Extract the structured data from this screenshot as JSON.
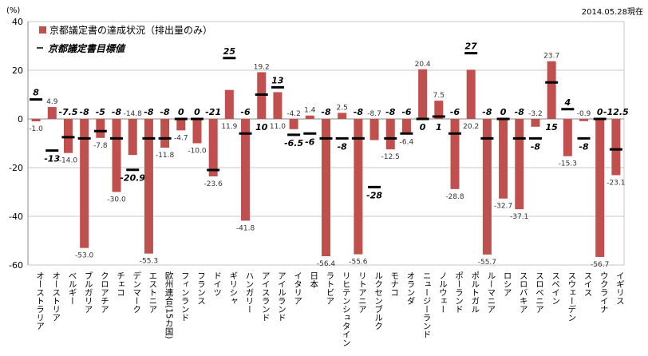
{
  "chart_data": {
    "type": "bar",
    "unit_label": "(%)",
    "date_note": "2014.05.28現在",
    "ylim": [
      -60,
      40
    ],
    "yticks": [
      40,
      20,
      0,
      -20,
      -40,
      -60
    ],
    "grid": true,
    "legend_position": "top-left",
    "bar_color": "#c0504d",
    "target_color": "#000000",
    "categories": [
      "オーストラリア",
      "オーストリア",
      "ベルギー",
      "ブルガリア",
      "クロアチア",
      "チェコ",
      "デンマーク",
      "エストニア",
      "欧州連合(15カ国)",
      "フィンランド",
      "フランス",
      "ドイツ",
      "ギリシャ",
      "ハンガリー",
      "アイスランド",
      "アイルランド",
      "イタリア",
      "日本",
      "ラトビア",
      "リヒテンシュタイン",
      "リトアニア",
      "ルクセンブルク",
      "モナコ",
      "オランダ",
      "ニュージーランド",
      "ノルウェー",
      "ポーランド",
      "ポルトガル",
      "ルーマニア",
      "ロシア",
      "スロバキア",
      "スロベニア",
      "スペイン",
      "スウェーデン",
      "スイス",
      "ウクライナ",
      "イギリス"
    ],
    "series": [
      {
        "name": "京都議定書の達成状況（排出量のみ）",
        "kind": "bar",
        "values": [
          -1.0,
          4.9,
          -14.0,
          -53.0,
          -7.8,
          -30.0,
          -14.8,
          -55.3,
          -11.8,
          -4.7,
          -10.0,
          -23.6,
          11.9,
          -41.8,
          19.2,
          11.0,
          -4.2,
          1.4,
          -56.4,
          2.5,
          -55.6,
          -8.7,
          -12.5,
          -6.4,
          20.4,
          7.5,
          -28.8,
          20.2,
          -55.7,
          -32.7,
          -37.1,
          -3.2,
          23.7,
          -15.3,
          -0.9,
          -56.7,
          -23.1
        ]
      },
      {
        "name": "京都議定書目標値",
        "kind": "marker",
        "values": [
          8,
          -13,
          -7.5,
          -8,
          -5,
          -8,
          -20.9,
          -8,
          -8,
          0,
          0,
          -21,
          25,
          -6,
          10,
          13,
          -6.5,
          -6,
          -8,
          -8,
          -8,
          -28,
          -8,
          -6,
          0,
          1,
          -6,
          27,
          -8,
          0,
          -8,
          -8,
          15,
          4,
          -8,
          0,
          -12.5
        ]
      }
    ]
  }
}
